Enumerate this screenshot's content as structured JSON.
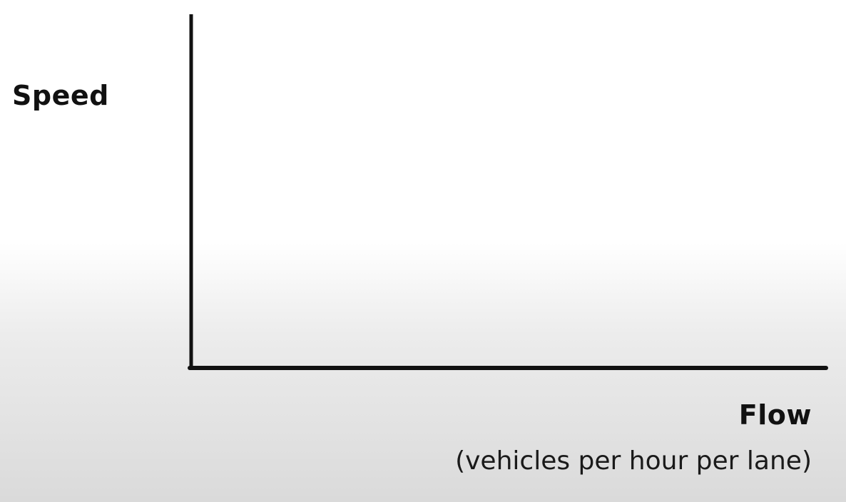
{
  "chart_data": {
    "type": "line",
    "title": "",
    "ylabel": "Speed",
    "xlabel": "Flow",
    "xlabel_sub": "(vehicles per hour per lane)",
    "series": [],
    "grid": false,
    "axis_color": "#111111"
  }
}
